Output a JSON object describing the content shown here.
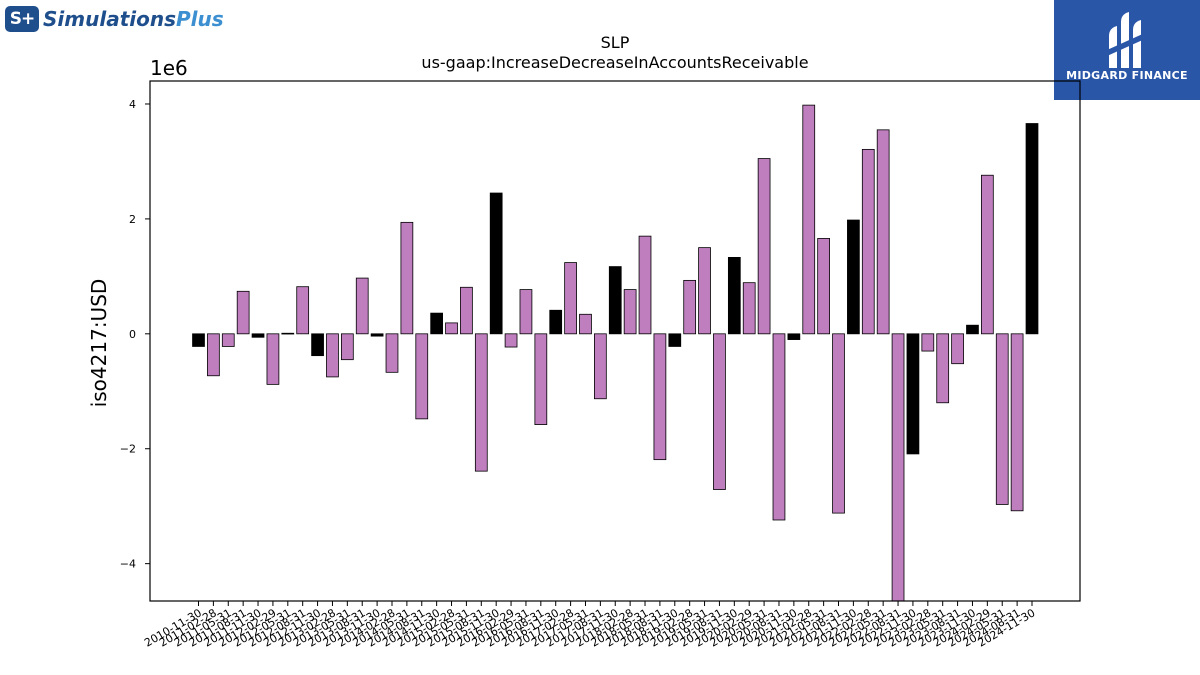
{
  "logos": {
    "left": {
      "mark": "S+",
      "name_main": "Simulations",
      "name_accent": "Plus"
    },
    "right": {
      "name": "MIDGARD FINANCE",
      "icon": "midgard-emblem-icon"
    }
  },
  "colors": {
    "positive_bar": "#bf7fbf",
    "highlight_bar": "#000000",
    "brand_blue": "#2a56a8"
  },
  "chart_data": {
    "type": "bar",
    "title": "SLP",
    "subtitle": "us-gaap:IncreaseDecreaseInAccountsReceivable",
    "ylabel": "iso4217:USD",
    "xlabel": "",
    "y_offset_label": "1e6",
    "ylim": [
      -4.65,
      4.4
    ],
    "yticks": [
      -4,
      -2,
      0,
      2,
      4
    ],
    "grid": false,
    "categories": [
      "2010-11-30",
      "2011-02-28",
      "2011-05-31",
      "2011-08-31",
      "2011-11-30",
      "2012-02-29",
      "2012-05-31",
      "2012-08-31",
      "2012-11-30",
      "2013-02-28",
      "2013-05-31",
      "2013-08-31",
      "2013-11-30",
      "2014-02-28",
      "2014-05-31",
      "2014-08-31",
      "2014-11-30",
      "2015-02-28",
      "2015-05-31",
      "2015-08-31",
      "2015-11-30",
      "2016-02-29",
      "2016-05-31",
      "2016-08-31",
      "2016-11-30",
      "2017-02-28",
      "2017-05-31",
      "2017-08-31",
      "2017-11-30",
      "2018-02-28",
      "2018-05-31",
      "2018-08-31",
      "2018-11-30",
      "2019-02-28",
      "2019-05-31",
      "2019-08-31",
      "2019-11-30",
      "2020-02-29",
      "2020-05-31",
      "2020-08-31",
      "2020-11-30",
      "2021-02-28",
      "2021-05-31",
      "2021-08-31",
      "2021-11-30",
      "2022-02-28",
      "2022-05-31",
      "2022-08-31",
      "2022-11-30",
      "2023-02-28",
      "2023-05-31",
      "2023-08-31",
      "2023-11-30",
      "2024-02-29",
      "2024-05-31",
      "2024-08-31",
      "2024-11-30"
    ],
    "values": [
      -0.22,
      -0.73,
      -0.22,
      0.74,
      -0.06,
      -0.88,
      0.01,
      0.82,
      -0.38,
      -0.75,
      -0.45,
      0.97,
      -0.04,
      -0.67,
      1.94,
      -1.48,
      0.36,
      0.19,
      0.81,
      -2.39,
      2.45,
      -0.23,
      0.77,
      -1.58,
      0.41,
      1.24,
      0.34,
      -1.13,
      1.17,
      0.77,
      1.7,
      -2.19,
      -0.22,
      0.93,
      1.5,
      -2.71,
      1.33,
      0.89,
      3.05,
      -3.24,
      -0.1,
      3.98,
      1.66,
      -3.12,
      1.98,
      3.21,
      3.55,
      -4.65,
      -2.09,
      -0.3,
      -1.2,
      -0.52,
      0.15,
      2.76,
      -2.97,
      -3.08,
      3.66
    ],
    "highlight": [
      true,
      false,
      false,
      false,
      true,
      false,
      true,
      false,
      true,
      false,
      false,
      false,
      true,
      false,
      false,
      false,
      true,
      false,
      false,
      false,
      true,
      false,
      false,
      false,
      true,
      false,
      false,
      false,
      true,
      false,
      false,
      false,
      true,
      false,
      false,
      false,
      true,
      false,
      false,
      false,
      true,
      false,
      false,
      false,
      true,
      false,
      false,
      false,
      true,
      false,
      false,
      false,
      true,
      false,
      false,
      false,
      true
    ]
  }
}
